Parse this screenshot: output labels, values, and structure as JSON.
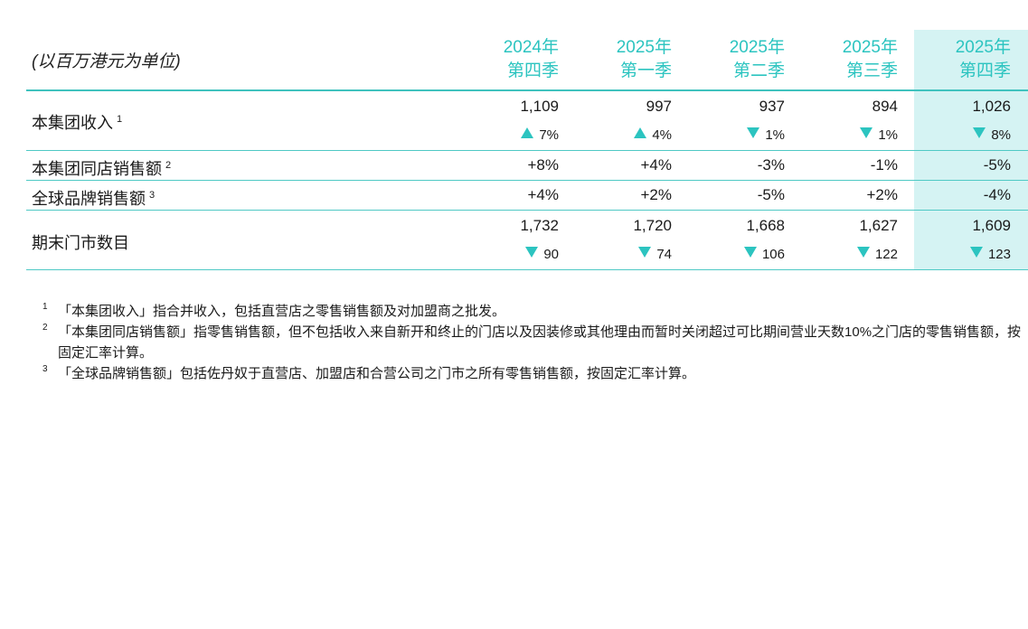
{
  "header": {
    "unit": "(以百万港元为单位)",
    "columns": [
      {
        "year": "2024年",
        "quarter": "第四季"
      },
      {
        "year": "2025年",
        "quarter": "第一季"
      },
      {
        "year": "2025年",
        "quarter": "第二季"
      },
      {
        "year": "2025年",
        "quarter": "第三季"
      },
      {
        "year": "2025年",
        "quarter": "第四季"
      }
    ]
  },
  "rows": {
    "revenue": {
      "label": "本集团收入",
      "note": "1",
      "values": [
        "1,109",
        "997",
        "937",
        "894",
        "1,026"
      ],
      "changes": [
        {
          "dir": "up",
          "text": "7%"
        },
        {
          "dir": "up",
          "text": "4%"
        },
        {
          "dir": "down",
          "text": "1%"
        },
        {
          "dir": "down",
          "text": "1%"
        },
        {
          "dir": "down",
          "text": "8%"
        }
      ]
    },
    "same_store": {
      "label": "本集团同店销售额",
      "note": "2",
      "values": [
        "+8%",
        "+4%",
        "-3%",
        "-1%",
        "-5%"
      ]
    },
    "global_brand": {
      "label": "全球品牌销售额",
      "note": "3",
      "values": [
        "+4%",
        "+2%",
        "-5%",
        "+2%",
        "-4%"
      ]
    },
    "stores": {
      "label": "期末门市数目",
      "values": [
        "1,732",
        "1,720",
        "1,668",
        "1,627",
        "1,609"
      ],
      "changes": [
        {
          "dir": "down",
          "text": "90"
        },
        {
          "dir": "down",
          "text": "74"
        },
        {
          "dir": "down",
          "text": "106"
        },
        {
          "dir": "down",
          "text": "122"
        },
        {
          "dir": "down",
          "text": "123"
        }
      ]
    }
  },
  "footnotes": [
    {
      "num": "1",
      "text": "「本集团收入」指合并收入，包括直营店之零售销售额及对加盟商之批发。"
    },
    {
      "num": "2",
      "text": "「本集团同店销售额」指零售销售额，但不包括收入来自新开和终止的门店以及因装修或其他理由而暂时关闭超过可比期间营业天数10%之门店的零售销售额，按固定汇率计算。"
    },
    {
      "num": "3",
      "text": "「全球品牌销售额」包括佐丹奴于直营店、加盟店和合营公司之门市之所有零售销售额，按固定汇率计算。"
    }
  ],
  "colors": {
    "accent": "#2cc4c0",
    "highlight_column": "#d5f3f3"
  }
}
